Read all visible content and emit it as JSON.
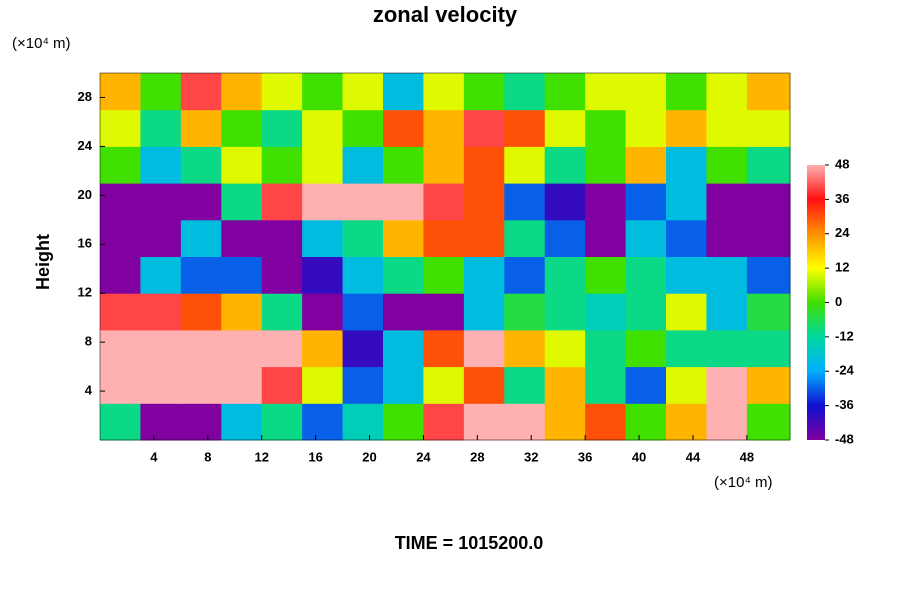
{
  "chart_data": {
    "type": "heatmap",
    "title": "zonal velocity",
    "ylabel": "Height",
    "y_unit": "(×10⁴ m)",
    "x_unit": "(×10⁴ m)",
    "footer": "TIME = 1015200.0",
    "x": [
      1.5,
      4.5,
      7.5,
      10.5,
      13.5,
      16.5,
      19.5,
      22.5,
      25.5,
      28.5,
      31.5,
      34.5,
      37.5,
      40.5,
      43.5,
      46.5,
      49.5
    ],
    "y": [
      1.5,
      4.5,
      7.5,
      10.5,
      13.5,
      16.5,
      19.5,
      22.5,
      25.5,
      28.5
    ],
    "z": [
      [
        -10,
        -50,
        -50,
        -20,
        -10,
        -30,
        -15,
        0,
        40,
        50,
        50,
        20,
        30,
        0,
        20,
        50,
        0
      ],
      [
        50,
        50,
        50,
        50,
        40,
        10,
        -30,
        -20,
        10,
        30,
        -10,
        20,
        -10,
        -30,
        10,
        50,
        20
      ],
      [
        50,
        50,
        50,
        50,
        50,
        20,
        -40,
        -20,
        30,
        50,
        20,
        10,
        -10,
        0,
        -10,
        -10,
        -10
      ],
      [
        40,
        40,
        30,
        20,
        -10,
        -50,
        -30,
        -50,
        -50,
        -20,
        -5,
        -10,
        -15,
        -10,
        10,
        -20,
        -5
      ],
      [
        -50,
        -20,
        -30,
        -30,
        -50,
        -40,
        -20,
        -10,
        0,
        -20,
        -30,
        -10,
        0,
        -10,
        -20,
        -20,
        -30
      ],
      [
        -50,
        -50,
        -20,
        -50,
        -50,
        -20,
        -10,
        20,
        30,
        30,
        -10,
        -30,
        -50,
        -20,
        -30,
        -50,
        -50
      ],
      [
        -50,
        -50,
        -50,
        -10,
        40,
        50,
        50,
        50,
        40,
        30,
        -30,
        -40,
        -50,
        -30,
        -20,
        -50,
        -50
      ],
      [
        0,
        -20,
        -10,
        10,
        0,
        10,
        -20,
        0,
        20,
        30,
        10,
        -10,
        0,
        20,
        -20,
        0,
        -10
      ],
      [
        10,
        -10,
        20,
        0,
        -10,
        10,
        0,
        30,
        20,
        40,
        30,
        10,
        0,
        10,
        20,
        10,
        10
      ],
      [
        20,
        0,
        40,
        20,
        10,
        0,
        10,
        -20,
        10,
        0,
        -10,
        0,
        10,
        10,
        0,
        10,
        20
      ]
    ],
    "xlim": [
      0,
      51.2
    ],
    "ylim": [
      0,
      30
    ],
    "xticks": [
      4,
      8,
      12,
      16,
      20,
      24,
      28,
      32,
      36,
      40,
      44,
      48
    ],
    "yticks": [
      4,
      8,
      12,
      16,
      20,
      24,
      28
    ],
    "clim": [
      -48,
      48
    ],
    "colorbar_ticks": [
      -48,
      -36,
      -24,
      -12,
      0,
      12,
      24,
      36,
      48
    ],
    "colorscale": [
      "#8000a0",
      "#1010d0",
      "#00b0ff",
      "#00d8a0",
      "#40e000",
      "#ffff00",
      "#ff9000",
      "#ff1010",
      "#ffb0b0"
    ]
  }
}
